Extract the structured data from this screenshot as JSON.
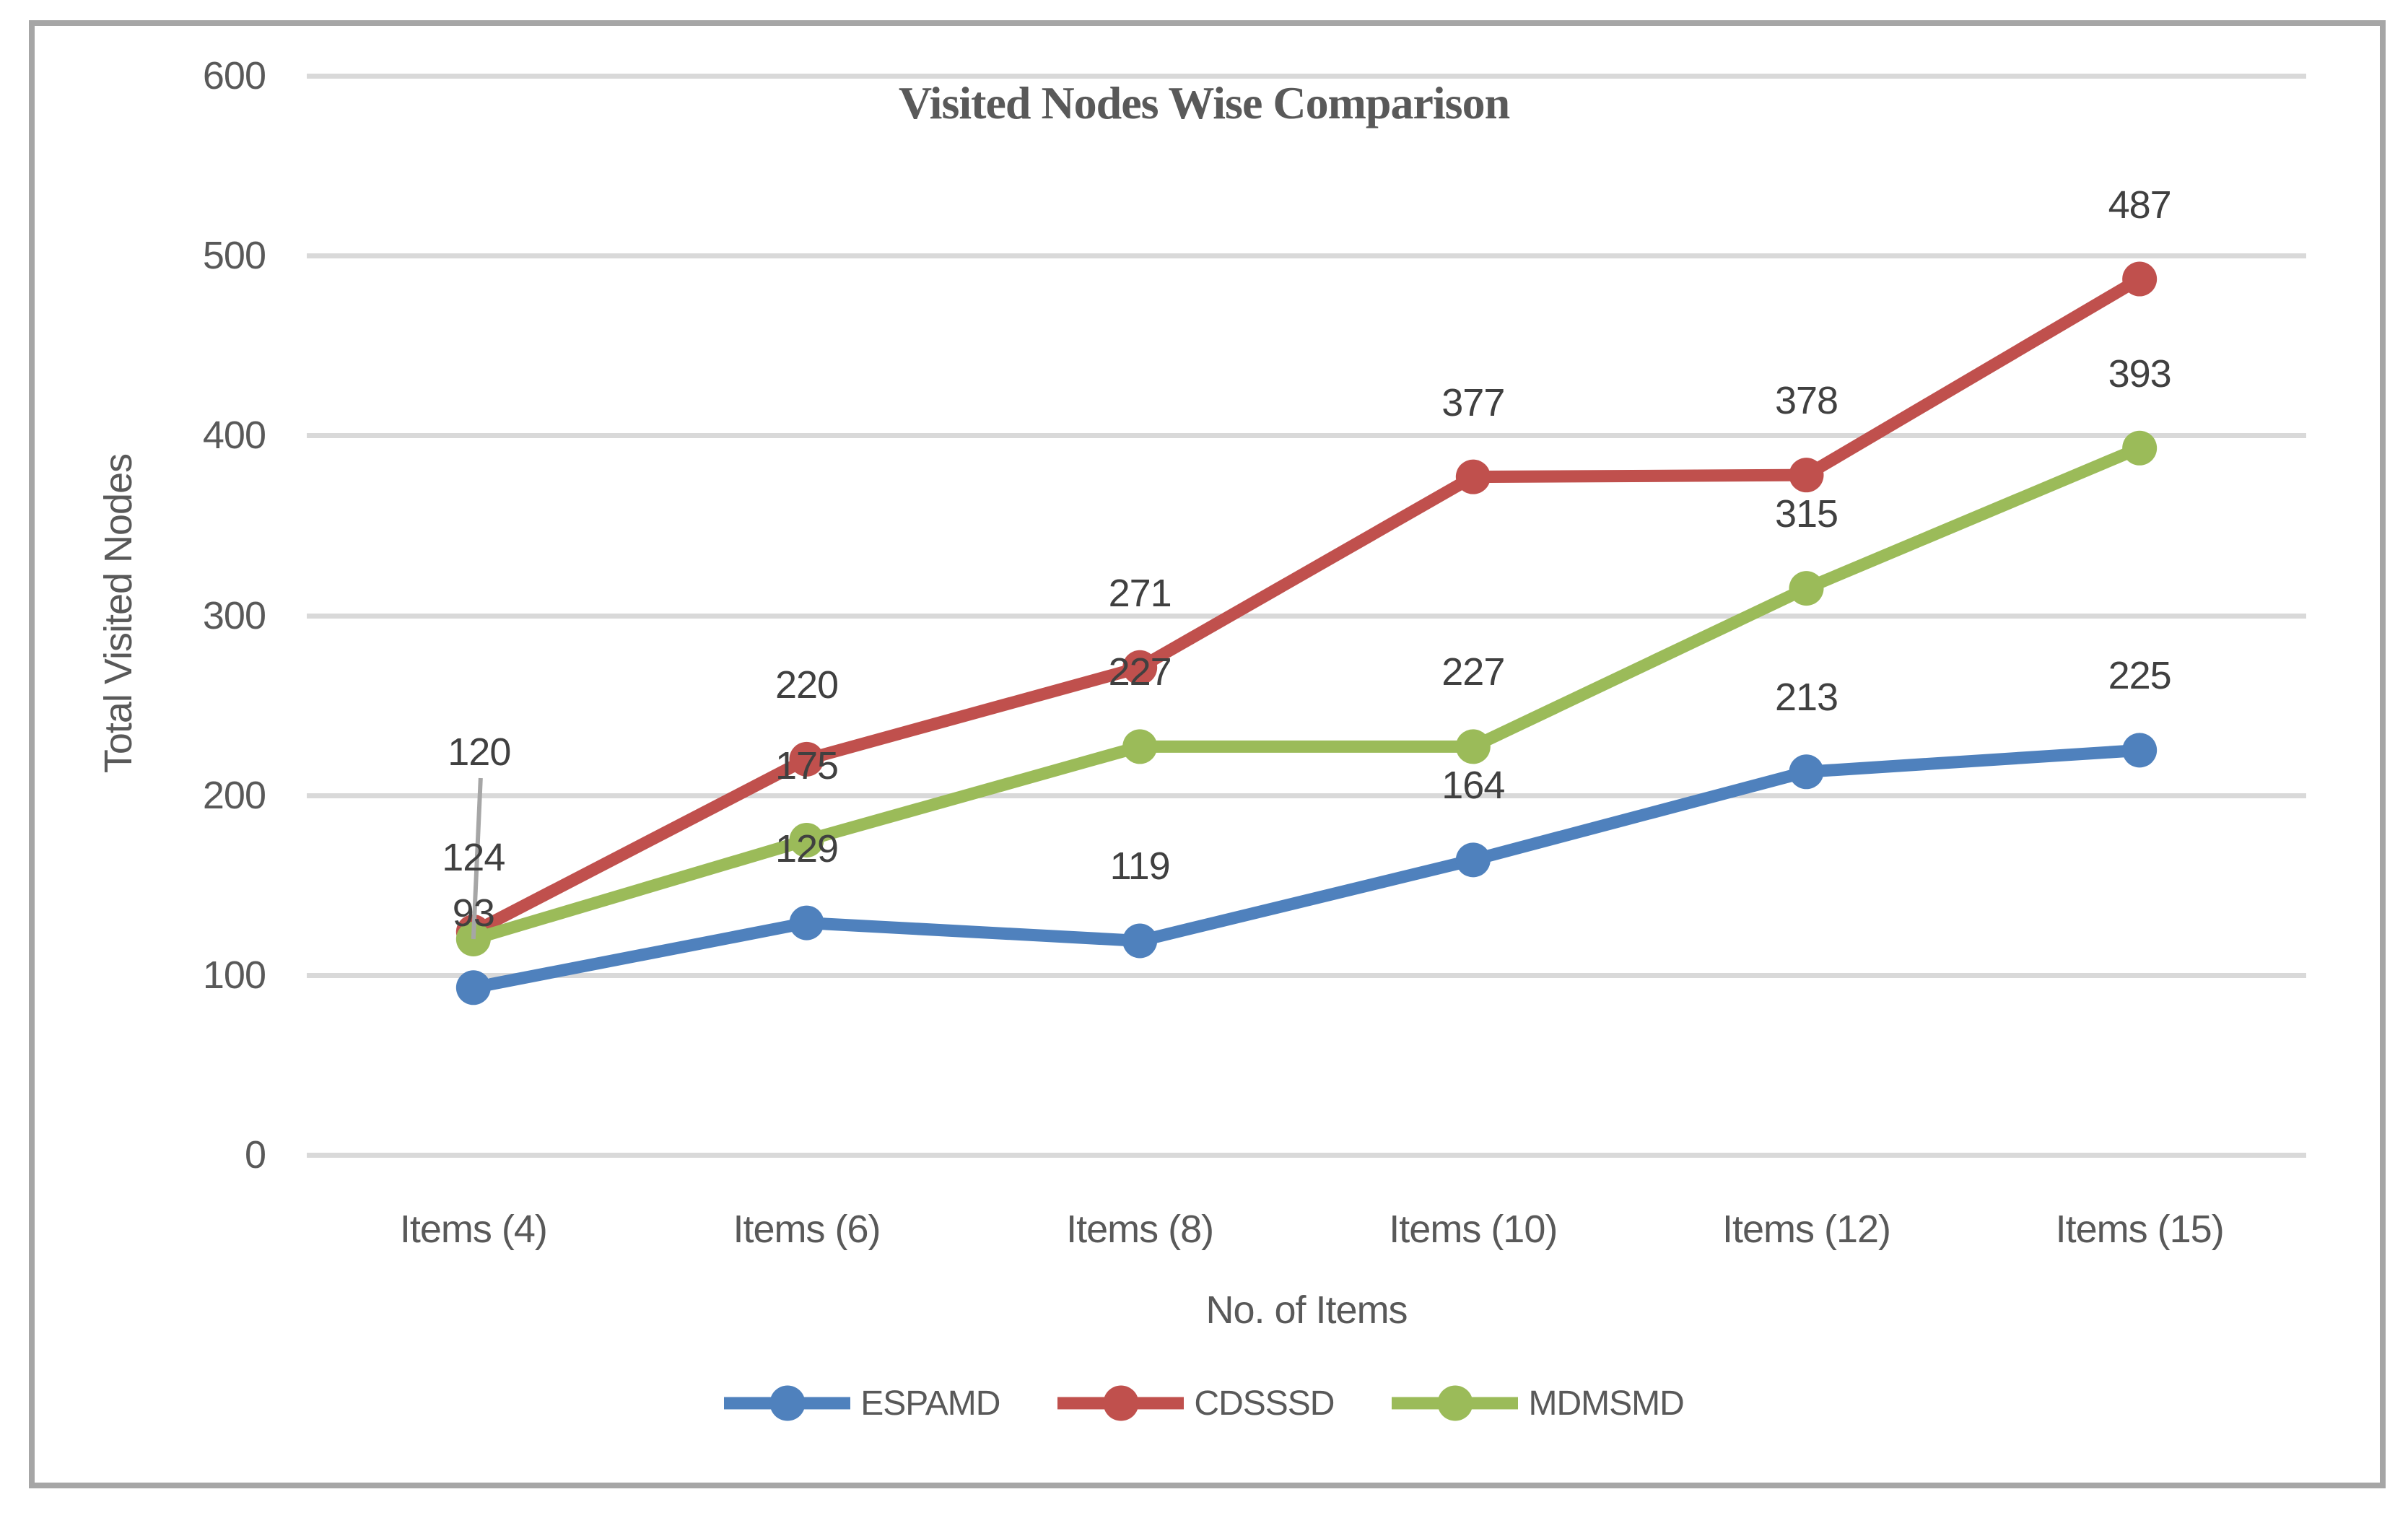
{
  "chart_data": {
    "type": "line",
    "title": "Visited Nodes Wise Comparison",
    "xlabel": "No. of Items",
    "ylabel": "Total Visited Nodes",
    "categories": [
      "Items (4)",
      "Items (6)",
      "Items (8)",
      "Items (10)",
      "Items (12)",
      "Items (15)"
    ],
    "series": [
      {
        "name": "ESPAMD",
        "color": "#4f81bd",
        "values": [
          93,
          129,
          119,
          164,
          213,
          225
        ]
      },
      {
        "name": "CDSSSD",
        "color": "#c0504d",
        "values": [
          124,
          220,
          271,
          377,
          378,
          487
        ]
      },
      {
        "name": "MDMSMD",
        "color": "#9bbb59",
        "values": [
          120,
          175,
          227,
          227,
          315,
          393
        ]
      }
    ],
    "ylim": [
      0,
      600
    ],
    "yticks": [
      0,
      100,
      200,
      300,
      400,
      500,
      600
    ],
    "grid": "horizontal",
    "gridline_color": "#d9d9d9",
    "legend_position": "bottom",
    "data_labels": {
      "position": "above",
      "callouts": [
        {
          "series": "MDMSMD",
          "index": 0,
          "dy": -259,
          "leader": true,
          "leader_color": "#a6a6a6"
        }
      ]
    }
  }
}
